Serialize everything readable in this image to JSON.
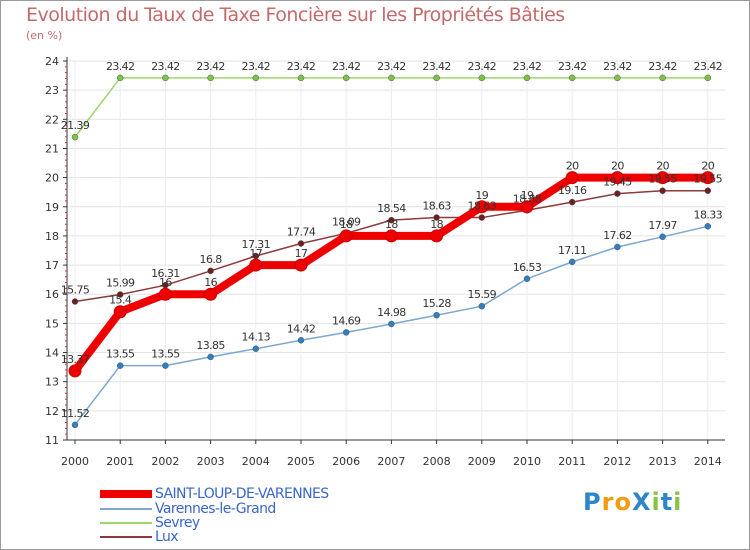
{
  "title": "Evolution du Taux de Taxe Foncière sur les Propriétés Bâties",
  "unit_label": "(en %)",
  "logo": {
    "text": "ProXiti",
    "letters": [
      "P",
      "r",
      "o",
      "X",
      "i",
      "t",
      "i"
    ],
    "colors": [
      "#2e86c9",
      "#f39c12",
      "#f39c12",
      "#2e86c9",
      "#8bc34a",
      "#2e86c9",
      "#8bc34a"
    ]
  },
  "chart_data": {
    "type": "line",
    "title": "Evolution du Taux de Taxe Foncière sur les Propriétés Bâties",
    "ylabel": "(en %)",
    "xlabel": "",
    "ylim": [
      11,
      24
    ],
    "yticks": [
      "11",
      "12",
      "13",
      "14",
      "15",
      "16",
      "17",
      "18",
      "19",
      "20",
      "21",
      "22",
      "23",
      "24"
    ],
    "categories": [
      "2000",
      "2001",
      "2002",
      "2003",
      "2004",
      "2005",
      "2006",
      "2007",
      "2008",
      "2009",
      "2010",
      "2011",
      "2012",
      "2013",
      "2014"
    ],
    "series": [
      {
        "name": "SAINT-LOUP-DE-VARENNES",
        "color": "#ee0000",
        "marker": "#ee0000",
        "width": 8,
        "values": [
          13.37,
          15.4,
          16,
          16,
          17,
          17,
          18,
          18,
          18,
          19,
          19,
          20,
          20,
          20,
          20
        ],
        "labels": [
          "13.37",
          "15.4",
          "16",
          "16",
          "17",
          "17",
          "18",
          "18",
          "18",
          "19",
          "19",
          "20",
          "20",
          "20",
          "20"
        ]
      },
      {
        "name": "Varennes-le-Grand",
        "color": "#7da7cf",
        "marker": "#2f7fc1",
        "width": 1.5,
        "values": [
          11.52,
          13.55,
          13.55,
          13.85,
          14.13,
          14.42,
          14.69,
          14.98,
          15.28,
          15.59,
          16.53,
          17.11,
          17.62,
          17.97,
          18.33
        ],
        "labels": [
          "11.52",
          "13.55",
          "13.55",
          "13.85",
          "14.13",
          "14.42",
          "14.69",
          "14.98",
          "15.28",
          "15.59",
          "16.53",
          "17.11",
          "17.62",
          "17.97",
          "18.33"
        ]
      },
      {
        "name": "Sevrey",
        "color": "#9bd66b",
        "marker": "#7cc544",
        "width": 1.5,
        "values": [
          21.39,
          23.42,
          23.42,
          23.42,
          23.42,
          23.42,
          23.42,
          23.42,
          23.42,
          23.42,
          23.42,
          23.42,
          23.42,
          23.42,
          23.42
        ],
        "labels": [
          "21.39",
          "23.42",
          "23.42",
          "23.42",
          "23.42",
          "23.42",
          "23.42",
          "23.42",
          "23.42",
          "23.42",
          "23.42",
          "23.42",
          "23.42",
          "23.42",
          "23.42"
        ]
      },
      {
        "name": "Lux",
        "color": "#8b3b3b",
        "marker": "#6e1f1f",
        "width": 1.5,
        "values": [
          15.75,
          15.99,
          16.31,
          16.8,
          17.31,
          17.74,
          18.09,
          18.54,
          18.63,
          18.63,
          18.88,
          19.16,
          19.45,
          19.55,
          19.55
        ],
        "labels": [
          "15.75",
          "15.99",
          "16.31",
          "16.8",
          "17.31",
          "17.74",
          "18.09",
          "18.54",
          "18.63",
          "18.63",
          "18.88",
          "19.16",
          "19.45",
          "19.55",
          "19.55"
        ]
      }
    ]
  }
}
